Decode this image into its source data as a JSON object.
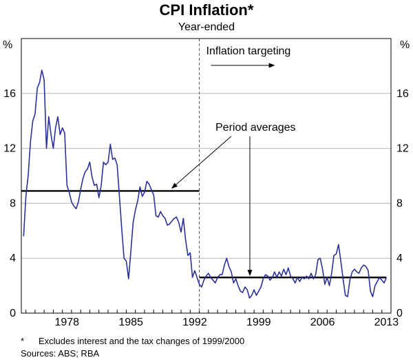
{
  "chart_data": {
    "type": "line",
    "title": "CPI Inflation*",
    "subtitle": "Year-ended",
    "y_unit": "%",
    "ylim": [
      0,
      20
    ],
    "yticks": [
      0,
      4,
      8,
      12,
      16
    ],
    "xlim": [
      1973.5,
      2014.0
    ],
    "xticks": [
      1978,
      1985,
      1992,
      1999,
      2006,
      2013
    ],
    "series": [
      {
        "name": "CPI inflation (year-ended)",
        "color": "#2a2f9a",
        "points": [
          [
            1973.75,
            5.6
          ],
          [
            1974.0,
            8.5
          ],
          [
            1974.25,
            10.0
          ],
          [
            1974.5,
            12.5
          ],
          [
            1974.75,
            14.0
          ],
          [
            1975.0,
            14.5
          ],
          [
            1975.25,
            16.4
          ],
          [
            1975.5,
            16.8
          ],
          [
            1975.75,
            17.7
          ],
          [
            1976.0,
            17.0
          ],
          [
            1976.25,
            12.0
          ],
          [
            1976.5,
            14.3
          ],
          [
            1976.75,
            13.0
          ],
          [
            1977.0,
            12.0
          ],
          [
            1977.25,
            13.5
          ],
          [
            1977.5,
            14.3
          ],
          [
            1977.75,
            13.0
          ],
          [
            1978.0,
            13.5
          ],
          [
            1978.25,
            13.1
          ],
          [
            1978.5,
            9.3
          ],
          [
            1978.75,
            8.8
          ],
          [
            1979.0,
            8.1
          ],
          [
            1979.25,
            7.8
          ],
          [
            1979.5,
            7.6
          ],
          [
            1979.75,
            8.1
          ],
          [
            1980.0,
            9.0
          ],
          [
            1980.25,
            9.8
          ],
          [
            1980.5,
            10.3
          ],
          [
            1980.75,
            10.5
          ],
          [
            1981.0,
            11.0
          ],
          [
            1981.25,
            9.9
          ],
          [
            1981.5,
            9.3
          ],
          [
            1981.75,
            9.4
          ],
          [
            1982.0,
            8.4
          ],
          [
            1982.25,
            9.3
          ],
          [
            1982.5,
            11.0
          ],
          [
            1982.75,
            10.8
          ],
          [
            1983.0,
            11.0
          ],
          [
            1983.25,
            12.3
          ],
          [
            1983.5,
            11.2
          ],
          [
            1983.75,
            11.3
          ],
          [
            1984.0,
            10.8
          ],
          [
            1984.25,
            8.5
          ],
          [
            1984.5,
            6.1
          ],
          [
            1984.75,
            4.0
          ],
          [
            1985.0,
            3.8
          ],
          [
            1985.25,
            2.5
          ],
          [
            1985.5,
            4.5
          ],
          [
            1985.75,
            6.6
          ],
          [
            1986.0,
            7.5
          ],
          [
            1986.25,
            8.2
          ],
          [
            1986.5,
            9.2
          ],
          [
            1986.75,
            8.5
          ],
          [
            1987.0,
            8.8
          ],
          [
            1987.25,
            9.6
          ],
          [
            1987.5,
            9.4
          ],
          [
            1987.75,
            9.0
          ],
          [
            1988.0,
            8.6
          ],
          [
            1988.25,
            7.1
          ],
          [
            1988.5,
            7.0
          ],
          [
            1988.75,
            7.4
          ],
          [
            1989.0,
            7.1
          ],
          [
            1989.25,
            6.9
          ],
          [
            1989.5,
            6.4
          ],
          [
            1989.75,
            6.5
          ],
          [
            1990.0,
            6.7
          ],
          [
            1990.25,
            6.9
          ],
          [
            1990.5,
            7.0
          ],
          [
            1990.75,
            6.6
          ],
          [
            1991.0,
            5.9
          ],
          [
            1991.25,
            6.9
          ],
          [
            1991.5,
            5.3
          ],
          [
            1991.75,
            4.2
          ],
          [
            1992.0,
            4.4
          ],
          [
            1992.25,
            2.6
          ],
          [
            1992.5,
            3.1
          ],
          [
            1992.75,
            2.6
          ],
          [
            1993.0,
            2.1
          ],
          [
            1993.25,
            1.9
          ],
          [
            1993.5,
            2.4
          ],
          [
            1993.75,
            2.7
          ],
          [
            1994.0,
            2.9
          ],
          [
            1994.25,
            2.6
          ],
          [
            1994.5,
            2.4
          ],
          [
            1994.75,
            2.2
          ],
          [
            1995.0,
            2.6
          ],
          [
            1995.25,
            2.8
          ],
          [
            1995.5,
            2.8
          ],
          [
            1995.75,
            3.5
          ],
          [
            1996.0,
            4.0
          ],
          [
            1996.25,
            3.4
          ],
          [
            1996.5,
            3.0
          ],
          [
            1996.75,
            2.2
          ],
          [
            1997.0,
            2.5
          ],
          [
            1997.25,
            2.0
          ],
          [
            1997.5,
            1.6
          ],
          [
            1997.75,
            1.5
          ],
          [
            1998.0,
            1.9
          ],
          [
            1998.25,
            1.7
          ],
          [
            1998.5,
            1.1
          ],
          [
            1998.75,
            1.3
          ],
          [
            1999.0,
            1.7
          ],
          [
            1999.25,
            1.3
          ],
          [
            1999.5,
            1.6
          ],
          [
            1999.75,
            1.9
          ],
          [
            2000.0,
            2.5
          ],
          [
            2000.25,
            2.8
          ],
          [
            2000.5,
            2.7
          ],
          [
            2000.75,
            2.4
          ],
          [
            2001.0,
            2.6
          ],
          [
            2001.25,
            3.0
          ],
          [
            2001.5,
            2.6
          ],
          [
            2001.75,
            3.0
          ],
          [
            2002.0,
            2.7
          ],
          [
            2002.25,
            3.2
          ],
          [
            2002.5,
            2.8
          ],
          [
            2002.75,
            3.3
          ],
          [
            2003.0,
            2.7
          ],
          [
            2003.25,
            2.5
          ],
          [
            2003.5,
            2.2
          ],
          [
            2003.75,
            2.6
          ],
          [
            2004.0,
            2.3
          ],
          [
            2004.25,
            2.6
          ],
          [
            2004.5,
            2.5
          ],
          [
            2004.75,
            2.7
          ],
          [
            2005.0,
            2.5
          ],
          [
            2005.25,
            2.9
          ],
          [
            2005.5,
            2.5
          ],
          [
            2005.75,
            2.8
          ],
          [
            2006.0,
            3.9
          ],
          [
            2006.25,
            4.0
          ],
          [
            2006.5,
            3.2
          ],
          [
            2006.75,
            2.1
          ],
          [
            2007.0,
            2.6
          ],
          [
            2007.25,
            2.0
          ],
          [
            2007.5,
            2.9
          ],
          [
            2007.75,
            4.2
          ],
          [
            2008.0,
            4.3
          ],
          [
            2008.25,
            5.0
          ],
          [
            2008.5,
            3.8
          ],
          [
            2008.75,
            2.5
          ],
          [
            2009.0,
            1.3
          ],
          [
            2009.25,
            1.2
          ],
          [
            2009.5,
            2.4
          ],
          [
            2009.75,
            3.0
          ],
          [
            2010.0,
            3.2
          ],
          [
            2010.25,
            3.0
          ],
          [
            2010.5,
            2.9
          ],
          [
            2010.75,
            3.3
          ],
          [
            2011.0,
            3.5
          ],
          [
            2011.25,
            3.4
          ],
          [
            2011.5,
            3.1
          ],
          [
            2011.75,
            1.6
          ],
          [
            2012.0,
            1.2
          ],
          [
            2012.25,
            2.0
          ],
          [
            2012.5,
            2.3
          ],
          [
            2012.75,
            2.6
          ],
          [
            2013.0,
            2.4
          ],
          [
            2013.25,
            2.2
          ],
          [
            2013.5,
            2.6
          ]
        ]
      }
    ],
    "period_averages": [
      {
        "from": 1973.5,
        "to": 1993.0,
        "value": 8.9
      },
      {
        "from": 1993.0,
        "to": 2013.5,
        "value": 2.6
      }
    ],
    "regime_change_year": 1993.0,
    "annotations": {
      "targeting_label": "Inflation targeting",
      "averages_label": "Period averages"
    },
    "footnote_marker": "*",
    "footnote": "Excludes interest and the tax changes of 1999/2000",
    "sources": "Sources: ABS; RBA"
  }
}
